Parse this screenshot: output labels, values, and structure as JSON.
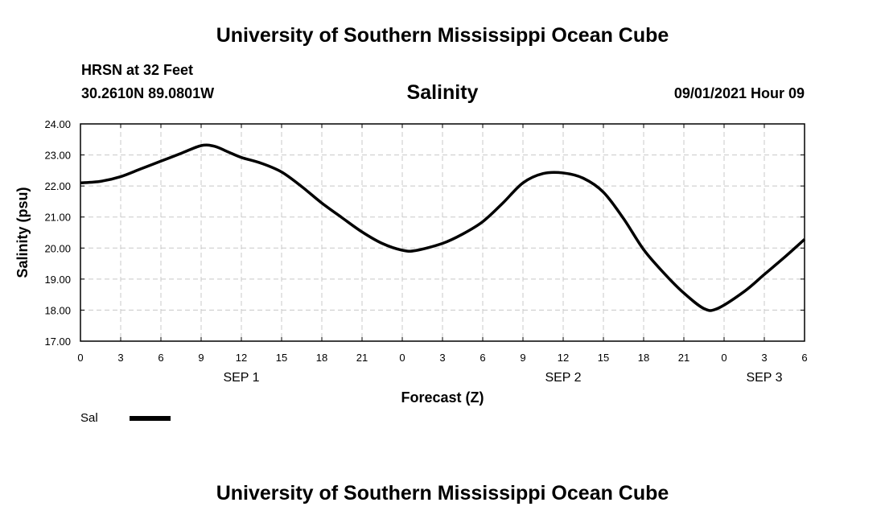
{
  "header": {
    "title": "University of Southern Mississippi Ocean Cube",
    "station": "HRSN at 32 Feet",
    "coordinates": "30.2610N  89.0801W",
    "variable": "Salinity",
    "run_time": "09/01/2021 Hour 09"
  },
  "footer": {
    "title": "University of Southern Mississippi Ocean Cube"
  },
  "chart_data": {
    "type": "line",
    "ylabel": "Salinity (psu)",
    "xlabel": "Forecast (Z)",
    "ylim": [
      17,
      24
    ],
    "xlim": [
      0,
      54
    ],
    "x_unit": "hours from 00Z SEP 1",
    "y_ticks": [
      "17.00",
      "18.00",
      "19.00",
      "20.00",
      "21.00",
      "22.00",
      "23.00",
      "24.00"
    ],
    "x_ticks": [
      {
        "x": 0,
        "label": "0"
      },
      {
        "x": 3,
        "label": "3"
      },
      {
        "x": 6,
        "label": "6"
      },
      {
        "x": 9,
        "label": "9"
      },
      {
        "x": 12,
        "label": "12"
      },
      {
        "x": 15,
        "label": "15"
      },
      {
        "x": 18,
        "label": "18"
      },
      {
        "x": 21,
        "label": "21"
      },
      {
        "x": 24,
        "label": "0"
      },
      {
        "x": 27,
        "label": "3"
      },
      {
        "x": 30,
        "label": "6"
      },
      {
        "x": 33,
        "label": "9"
      },
      {
        "x": 36,
        "label": "12"
      },
      {
        "x": 39,
        "label": "15"
      },
      {
        "x": 42,
        "label": "18"
      },
      {
        "x": 45,
        "label": "21"
      },
      {
        "x": 48,
        "label": "0"
      },
      {
        "x": 51,
        "label": "3"
      },
      {
        "x": 54,
        "label": "6"
      }
    ],
    "day_labels": [
      {
        "x": 12,
        "label": "SEP 1"
      },
      {
        "x": 36,
        "label": "SEP 2"
      },
      {
        "x": 51,
        "label": "SEP 3"
      }
    ],
    "grid": true,
    "legend": {
      "position": "bottom-left"
    },
    "series": [
      {
        "name": "Sal",
        "color": "#000000",
        "x": [
          0,
          1.5,
          3,
          4.5,
          6,
          7.5,
          9,
          10,
          11,
          12,
          13.5,
          15,
          16.5,
          18,
          19.5,
          21,
          22.5,
          24,
          25,
          27,
          28.5,
          30,
          31.5,
          33,
          34.5,
          36,
          37.5,
          39,
          40.5,
          42,
          43.5,
          45,
          46.5,
          47.5,
          49.5,
          51,
          52.5,
          54
        ],
        "values": [
          22.1,
          22.15,
          22.3,
          22.55,
          22.8,
          23.05,
          23.3,
          23.28,
          23.1,
          22.92,
          22.73,
          22.45,
          21.98,
          21.45,
          20.98,
          20.52,
          20.15,
          19.93,
          19.92,
          20.15,
          20.45,
          20.85,
          21.45,
          22.1,
          22.4,
          22.42,
          22.25,
          21.8,
          20.95,
          19.95,
          19.2,
          18.55,
          18.05,
          18.05,
          18.6,
          19.15,
          19.7,
          20.28
        ]
      }
    ]
  }
}
